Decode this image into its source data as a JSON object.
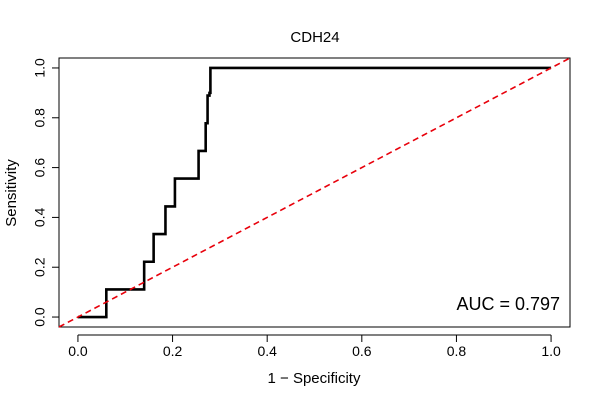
{
  "chart_data": {
    "type": "line",
    "title": "CDH24",
    "xlabel": "1 − Specificity",
    "ylabel": "Sensitivity",
    "xlim": [
      -0.04,
      1.04
    ],
    "ylim": [
      -0.04,
      1.04
    ],
    "x_ticks": [
      0.0,
      0.2,
      0.4,
      0.6,
      0.8,
      1.0
    ],
    "x_tick_labels": [
      "0.0",
      "0.2",
      "0.4",
      "0.6",
      "0.8",
      "1.0"
    ],
    "y_ticks": [
      0.0,
      0.2,
      0.4,
      0.6,
      0.8,
      1.0
    ],
    "y_tick_labels": [
      "0.0",
      "0.2",
      "0.4",
      "0.6",
      "0.8",
      "1.0"
    ],
    "grid": false,
    "series": [
      {
        "name": "",
        "color": "#000000",
        "style": "solid",
        "x": [
          0.0,
          0.06,
          0.06,
          0.14,
          0.14,
          0.16,
          0.16,
          0.185,
          0.185,
          0.205,
          0.205,
          0.255,
          0.255,
          0.27,
          0.27,
          0.274,
          0.274,
          0.278,
          0.278,
          0.28,
          0.28,
          0.28,
          1.0
        ],
        "y": [
          0.0,
          0.0,
          0.111,
          0.111,
          0.222,
          0.222,
          0.333,
          0.333,
          0.444,
          0.444,
          0.556,
          0.556,
          0.667,
          0.667,
          0.778,
          0.778,
          0.889,
          0.889,
          0.9,
          0.9,
          1.0,
          1.0,
          1.0
        ]
      },
      {
        "name": "",
        "color": "#e8000b",
        "style": "dashed",
        "x": [
          -0.04,
          1.04
        ],
        "y": [
          -0.04,
          1.04
        ]
      }
    ],
    "annotation": "AUC = 0.797"
  }
}
